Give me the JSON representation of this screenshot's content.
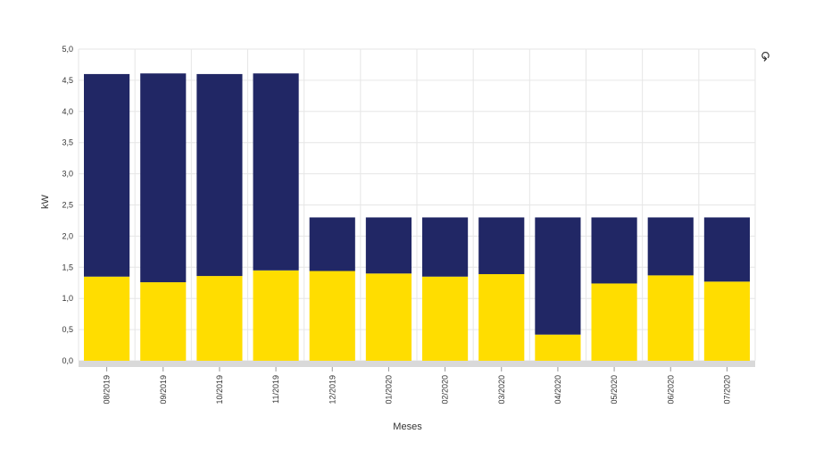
{
  "chart_data": {
    "type": "bar",
    "stacked": true,
    "xlabel": "Meses",
    "ylabel": "kW",
    "ylim": [
      0,
      5
    ],
    "yticks": [
      "0,0",
      "0,5",
      "1,0",
      "1,5",
      "2,0",
      "2,5",
      "3,0",
      "3,5",
      "4,0",
      "4,5",
      "5,0"
    ],
    "categories": [
      "08/2019",
      "09/2019",
      "10/2019",
      "11/2019",
      "12/2019",
      "01/2020",
      "02/2020",
      "03/2020",
      "04/2020",
      "05/2020",
      "06/2020",
      "07/2020"
    ],
    "series": [
      {
        "color": "#FFDD00",
        "values": [
          1.35,
          1.26,
          1.36,
          1.45,
          1.44,
          1.4,
          1.35,
          1.39,
          0.42,
          1.24,
          1.37,
          1.27
        ]
      },
      {
        "color": "#212765",
        "values": [
          3.25,
          3.35,
          3.24,
          3.16,
          0.86,
          0.9,
          0.95,
          0.91,
          1.88,
          1.06,
          0.93,
          1.03
        ]
      }
    ],
    "grid": true,
    "legend": "none"
  },
  "toolbar": {
    "icon": "zoom-reset-icon",
    "icon_glyph": "⟲"
  },
  "colors": {
    "grid": "#e6e6e6",
    "axis_band": "#d9d9d9"
  }
}
